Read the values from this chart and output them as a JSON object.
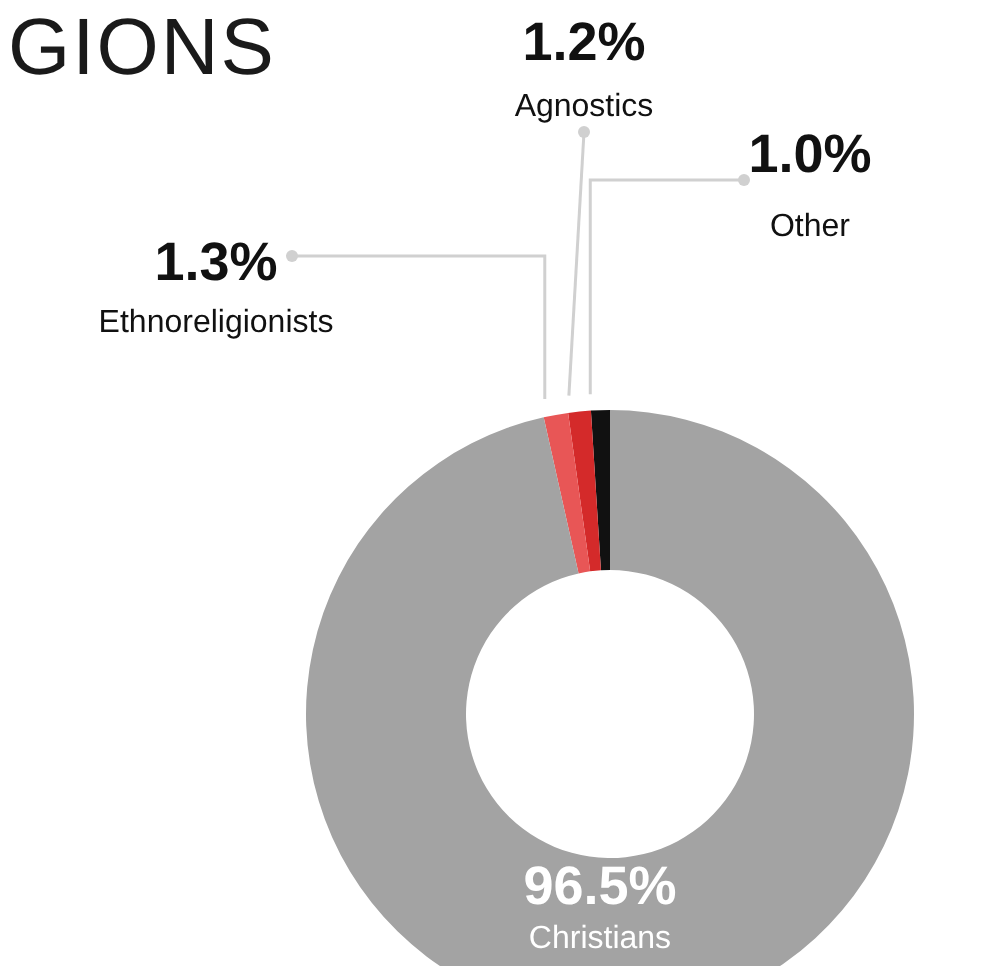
{
  "chart_data": {
    "type": "donut",
    "title": "GIONS",
    "categories": [
      "Other",
      "Agnostics",
      "Ethnoreligionists",
      "Christians"
    ],
    "values": [
      1.0,
      1.2,
      1.3,
      96.5
    ],
    "value_labels": [
      "1.0%",
      "1.2%",
      "1.3%",
      "96.5%"
    ],
    "colors": [
      "#111111",
      "#d42a2a",
      "#e85656",
      "#a3a3a3"
    ],
    "legend": false
  }
}
